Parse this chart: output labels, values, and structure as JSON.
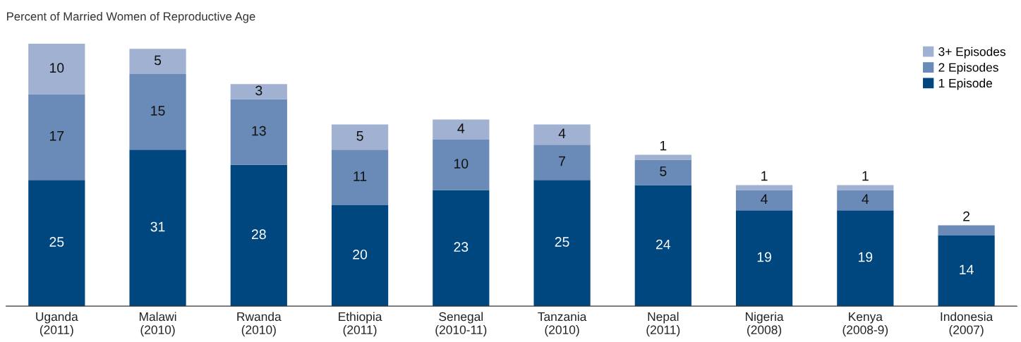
{
  "chart_data": {
    "type": "bar",
    "title": "Percent of Married Women of Reproductive Age",
    "stacked": true,
    "data_labels": true,
    "legend": "top right",
    "categories": [
      "Uganda\n(2011)",
      "Malawi\n(2010)",
      "Rwanda\n(2010)",
      "Ethiopia\n(2011)",
      "Senegal\n(2010-11)",
      "Tanzania\n(2010)",
      "Nepal\n(2011)",
      "Nigeria\n(2008)",
      "Kenya\n(2008-9)",
      "Indonesia\n(2007)"
    ],
    "series": [
      {
        "name": "1 Episode",
        "color": "#00477f",
        "values": [
          25,
          31,
          28,
          20,
          23,
          25,
          24,
          19,
          19,
          14
        ]
      },
      {
        "name": "2 Episodes",
        "color": "#6a8ab8",
        "values": [
          17,
          15,
          13,
          11,
          10,
          7,
          5,
          4,
          4,
          2
        ]
      },
      {
        "name": "3+ Episodes",
        "color": "#a0b1d2",
        "values": [
          10,
          5,
          3,
          5,
          4,
          4,
          1,
          1,
          1,
          null
        ]
      }
    ]
  }
}
